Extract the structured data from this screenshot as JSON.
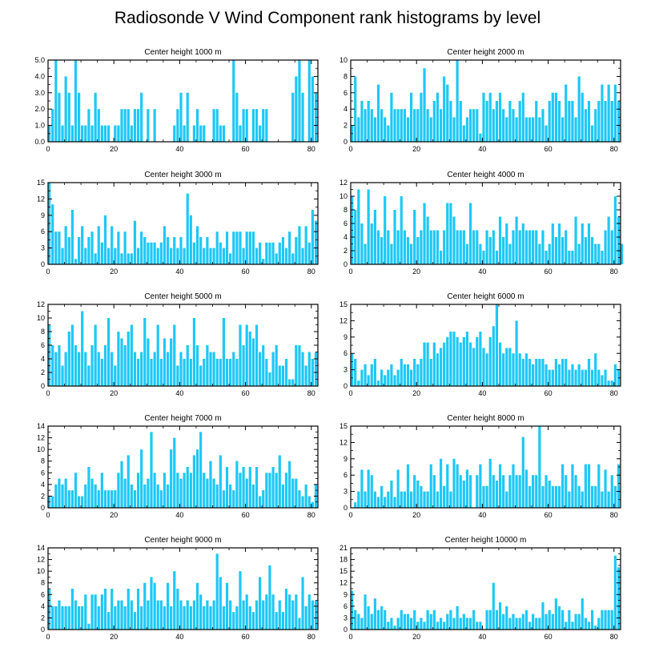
{
  "figure": {
    "title": "Radiosonde V Wind Component rank histograms by level",
    "bar_color": "#1ec8f5",
    "axis_color": "#000000"
  },
  "chart_data": [
    {
      "type": "bar",
      "title": "Center height 1000 m",
      "xlim": [
        0,
        82
      ],
      "ylim": [
        0,
        5
      ],
      "xticks": [
        0,
        20,
        40,
        60,
        80
      ],
      "yticks": [
        0,
        1,
        2,
        3,
        4,
        5
      ],
      "ytick_labels": [
        "0.0",
        "1.0",
        "2.0",
        "3.0",
        "4.0",
        "5.0"
      ],
      "values": [
        1,
        2,
        5,
        3,
        1,
        4,
        3,
        1,
        5,
        3,
        1,
        1,
        2,
        1,
        3,
        2,
        1,
        1,
        1,
        0,
        1,
        1,
        2,
        2,
        2,
        1,
        2,
        2,
        3,
        0,
        2,
        0,
        2,
        0,
        0,
        0,
        0,
        0,
        1,
        2,
        3,
        1,
        3,
        0,
        1,
        2,
        1,
        1,
        0,
        0,
        2,
        2,
        1,
        1,
        0,
        0,
        5,
        3,
        1,
        2,
        2,
        0,
        2,
        2,
        1,
        2,
        2,
        0,
        0,
        0,
        0,
        0,
        0,
        0,
        3,
        4,
        5,
        3,
        0,
        5,
        4,
        3
      ]
    },
    {
      "type": "bar",
      "title": "Center height 2000 m",
      "xlim": [
        0,
        82
      ],
      "ylim": [
        0,
        10
      ],
      "xticks": [
        0,
        20,
        40,
        60,
        80
      ],
      "yticks": [
        0,
        2,
        4,
        6,
        8,
        10
      ],
      "ytick_labels": [
        "0",
        "2",
        "4",
        "6",
        "8",
        "10"
      ],
      "values": [
        2,
        8,
        3,
        5,
        4,
        5,
        4,
        3,
        7,
        4,
        3,
        2,
        6,
        4,
        4,
        4,
        4,
        3,
        6,
        4,
        4,
        6,
        9,
        4,
        3,
        5,
        6,
        4,
        8,
        7,
        5,
        3,
        10,
        5,
        2,
        3,
        4,
        4,
        4,
        1,
        6,
        5,
        6,
        4,
        5,
        6,
        4,
        3,
        5,
        4,
        3,
        5,
        6,
        3,
        3,
        3,
        5,
        3,
        4,
        2,
        5,
        6,
        6,
        5,
        3,
        7,
        5,
        5,
        3,
        8,
        6,
        4,
        5,
        2,
        4,
        5,
        7,
        5,
        7,
        5,
        7,
        5
      ]
    },
    {
      "type": "bar",
      "title": "Center height 3000 m",
      "xlim": [
        0,
        82
      ],
      "ylim": [
        0,
        15
      ],
      "xticks": [
        0,
        20,
        40,
        60,
        80
      ],
      "yticks": [
        0,
        3,
        6,
        9,
        12,
        15
      ],
      "ytick_labels": [
        "0",
        "3",
        "6",
        "9",
        "12",
        "15"
      ],
      "values": [
        15,
        11,
        6,
        6,
        3,
        7,
        5,
        10,
        1,
        5,
        7,
        3,
        5,
        6,
        2,
        7,
        4,
        9,
        3,
        7,
        3,
        6,
        2,
        6,
        2,
        2,
        8,
        3,
        6,
        5,
        4,
        4,
        4,
        3,
        4,
        7,
        5,
        3,
        5,
        3,
        5,
        3,
        13,
        9,
        4,
        7,
        5,
        3,
        5,
        3,
        3,
        6,
        4,
        3,
        6,
        2,
        6,
        6,
        6,
        3,
        6,
        6,
        6,
        3,
        4,
        1,
        4,
        4,
        4,
        2,
        4,
        5,
        3,
        6,
        2,
        5,
        7,
        3,
        7,
        4,
        10,
        8
      ]
    },
    {
      "type": "bar",
      "title": "Center height 4000 m",
      "xlim": [
        0,
        82
      ],
      "ylim": [
        0,
        12
      ],
      "xticks": [
        0,
        20,
        40,
        60,
        80
      ],
      "yticks": [
        0,
        2,
        4,
        6,
        8,
        10,
        12
      ],
      "ytick_labels": [
        "0",
        "2",
        "4",
        "6",
        "8",
        "10",
        "12"
      ],
      "values": [
        10,
        8,
        11,
        6,
        3,
        11,
        6,
        8,
        5,
        4,
        10,
        5,
        3,
        8,
        5,
        10,
        5,
        4,
        3,
        8,
        4,
        5,
        9,
        7,
        5,
        5,
        5,
        2,
        5,
        9,
        9,
        7,
        5,
        5,
        5,
        3,
        9,
        5,
        5,
        3,
        2,
        5,
        4,
        5,
        2,
        7,
        4,
        6,
        3,
        5,
        7,
        5,
        6,
        5,
        5,
        5,
        5,
        3,
        5,
        2,
        3,
        6,
        4,
        6,
        4,
        5,
        2,
        2,
        7,
        3,
        6,
        4,
        6,
        4,
        3,
        3,
        2,
        5,
        7,
        5,
        10,
        7,
        3
      ]
    },
    {
      "type": "bar",
      "title": "Center height 5000 m",
      "xlim": [
        0,
        82
      ],
      "ylim": [
        0,
        12
      ],
      "xticks": [
        0,
        20,
        40,
        60,
        80
      ],
      "yticks": [
        0,
        2,
        4,
        6,
        8,
        10,
        12
      ],
      "ytick_labels": [
        "0",
        "2",
        "4",
        "6",
        "8",
        "10",
        "12"
      ],
      "values": [
        9,
        6,
        5,
        6,
        3,
        5,
        8,
        9,
        6,
        5,
        11,
        5,
        3,
        6,
        9,
        5,
        4,
        6,
        10,
        5,
        3,
        8,
        7,
        6,
        8,
        9,
        5,
        4,
        5,
        10,
        7,
        4,
        5,
        9,
        4,
        7,
        5,
        7,
        9,
        3,
        5,
        4,
        6,
        4,
        10,
        6,
        3,
        4,
        6,
        5,
        5,
        4,
        4,
        10,
        4,
        4,
        5,
        4,
        9,
        6,
        9,
        8,
        7,
        9,
        5,
        6,
        4,
        2,
        5,
        6,
        3,
        3,
        4,
        1,
        1,
        6,
        6,
        5,
        3,
        5,
        4,
        5
      ]
    },
    {
      "type": "bar",
      "title": "Center height 6000 m",
      "xlim": [
        0,
        82
      ],
      "ylim": [
        0,
        15
      ],
      "xticks": [
        0,
        20,
        40,
        60,
        80
      ],
      "yticks": [
        0,
        3,
        6,
        9,
        12,
        15
      ],
      "ytick_labels": [
        "0",
        "3",
        "6",
        "9",
        "12",
        "15"
      ],
      "values": [
        6,
        5,
        1,
        3,
        4,
        2,
        4,
        5,
        1,
        3,
        2,
        3,
        4,
        2,
        3,
        5,
        4,
        4,
        3,
        5,
        4,
        5,
        8,
        8,
        5,
        8,
        6,
        7,
        8,
        9,
        10,
        10,
        9,
        8,
        9,
        10,
        8,
        7,
        9,
        10,
        7,
        6,
        9,
        11,
        15,
        8,
        6,
        7,
        7,
        6,
        12,
        6,
        5,
        6,
        5,
        4,
        5,
        5,
        5,
        4,
        3,
        3,
        5,
        4,
        5,
        5,
        3,
        4,
        3,
        4,
        3,
        3,
        5,
        3,
        6,
        3,
        2,
        3,
        1,
        1,
        4,
        3
      ]
    },
    {
      "type": "bar",
      "title": "Center height 7000 m",
      "xlim": [
        0,
        82
      ],
      "ylim": [
        0,
        14
      ],
      "xticks": [
        0,
        20,
        40,
        60,
        80
      ],
      "yticks": [
        0,
        2,
        4,
        6,
        8,
        10,
        12,
        14
      ],
      "ytick_labels": [
        "0",
        "2",
        "4",
        "6",
        "8",
        "10",
        "12",
        "14"
      ],
      "values": [
        2,
        2,
        4,
        5,
        4,
        5,
        3,
        3,
        6,
        2,
        2,
        4,
        7,
        5,
        4,
        3,
        6,
        3,
        3,
        3,
        3,
        6,
        8,
        5,
        9,
        4,
        3,
        6,
        10,
        4,
        5,
        13,
        6,
        4,
        3,
        6,
        4,
        10,
        12,
        6,
        5,
        6,
        7,
        6,
        9,
        10,
        13,
        6,
        5,
        8,
        5,
        4,
        9,
        3,
        7,
        4,
        3,
        8,
        6,
        7,
        5,
        7,
        4,
        7,
        2,
        3,
        6,
        6,
        7,
        6,
        9,
        4,
        6,
        8,
        5,
        5,
        3,
        2,
        4,
        2,
        1,
        4
      ]
    },
    {
      "type": "bar",
      "title": "Center height 8000 m",
      "xlim": [
        0,
        82
      ],
      "ylim": [
        0,
        15
      ],
      "xticks": [
        0,
        20,
        40,
        60,
        80
      ],
      "yticks": [
        0,
        3,
        6,
        9,
        12,
        15
      ],
      "ytick_labels": [
        "0",
        "3",
        "6",
        "9",
        "12",
        "15"
      ],
      "values": [
        0,
        1,
        3,
        7,
        3,
        7,
        6,
        3,
        2,
        4,
        2,
        3,
        5,
        2,
        7,
        3,
        3,
        8,
        3,
        6,
        5,
        4,
        3,
        3,
        8,
        6,
        3,
        9,
        4,
        8,
        3,
        9,
        8,
        6,
        5,
        7,
        6,
        0,
        6,
        8,
        4,
        4,
        9,
        6,
        5,
        8,
        6,
        3,
        6,
        8,
        6,
        6,
        13,
        7,
        4,
        6,
        6,
        15,
        4,
        6,
        5,
        4,
        4,
        4,
        8,
        6,
        3,
        8,
        6,
        4,
        3,
        8,
        8,
        4,
        4,
        8,
        3,
        7,
        3,
        6,
        4,
        8
      ]
    },
    {
      "type": "bar",
      "title": "Center height 9000 m",
      "xlim": [
        0,
        82
      ],
      "ylim": [
        0,
        14
      ],
      "xticks": [
        0,
        20,
        40,
        60,
        80
      ],
      "yticks": [
        0,
        2,
        4,
        6,
        8,
        10,
        12,
        14
      ],
      "ytick_labels": [
        "0",
        "2",
        "4",
        "6",
        "8",
        "10",
        "12",
        "14"
      ],
      "values": [
        7,
        4,
        4,
        5,
        4,
        4,
        4,
        7,
        5,
        4,
        4,
        6,
        1,
        6,
        6,
        4,
        6,
        7,
        3,
        7,
        4,
        5,
        5,
        4,
        7,
        5,
        3,
        7,
        4,
        8,
        5,
        9,
        8,
        5,
        5,
        4,
        8,
        4,
        10,
        7,
        5,
        4,
        5,
        4,
        5,
        8,
        6,
        4,
        5,
        4,
        5,
        13,
        9,
        4,
        8,
        5,
        3,
        4,
        10,
        5,
        6,
        4,
        3,
        5,
        9,
        5,
        6,
        11,
        6,
        3,
        5,
        3,
        7,
        6,
        5,
        6,
        2,
        9,
        4,
        6,
        5,
        5
      ]
    },
    {
      "type": "bar",
      "title": "Center height 10000 m",
      "xlim": [
        0,
        82
      ],
      "ylim": [
        0,
        21
      ],
      "xticks": [
        0,
        20,
        40,
        60,
        80
      ],
      "yticks": [
        0,
        3,
        6,
        9,
        12,
        15,
        18,
        21
      ],
      "ytick_labels": [
        "0",
        "3",
        "6",
        "9",
        "12",
        "15",
        "18",
        "21"
      ],
      "values": [
        10,
        5,
        4,
        3,
        9,
        6,
        4,
        8,
        5,
        6,
        5,
        2,
        3,
        1,
        3,
        5,
        4,
        4,
        3,
        5,
        2,
        3,
        2,
        5,
        4,
        5,
        2,
        3,
        2,
        4,
        5,
        3,
        6,
        3,
        4,
        3,
        3,
        5,
        2,
        2,
        0,
        5,
        5,
        12,
        5,
        7,
        4,
        6,
        3,
        4,
        3,
        3,
        4,
        5,
        2,
        4,
        3,
        3,
        7,
        4,
        5,
        4,
        8,
        6,
        5,
        2,
        5,
        2,
        4,
        4,
        8,
        3,
        2,
        5,
        1,
        3,
        5,
        5,
        5,
        5,
        19,
        16
      ]
    }
  ]
}
